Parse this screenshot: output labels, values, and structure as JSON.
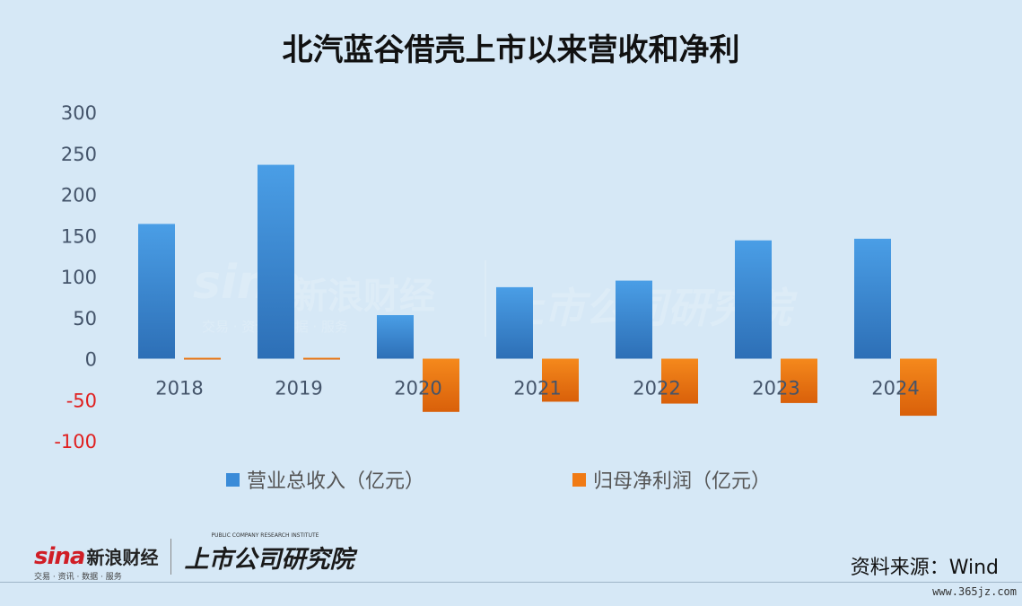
{
  "title": "北汽蓝谷借壳上市以来营收和净利",
  "colors": {
    "background": "#d6e8f6",
    "revenue": "#3a8bd8",
    "net_profit": "#f07a14",
    "negative_tick": "#e02020",
    "positive_tick": "#44546a"
  },
  "chart_data": {
    "type": "bar",
    "categories": [
      "2018",
      "2019",
      "2020",
      "2021",
      "2022",
      "2023",
      "2024"
    ],
    "series": [
      {
        "name": "营业总收入（亿元）",
        "values": [
          164,
          236,
          53,
          87,
          95,
          144,
          146
        ]
      },
      {
        "name": "归母净利润（亿元）",
        "values": [
          1.6,
          -1.2,
          -64.8,
          -52.4,
          -54.7,
          -54.0,
          -69.5
        ]
      }
    ],
    "ylim": [
      -100,
      300
    ],
    "yticks": [
      300,
      250,
      200,
      150,
      100,
      50,
      0,
      -50,
      -100
    ],
    "grid": false,
    "legend": "bottom"
  },
  "watermark": {
    "sina": "sina",
    "sina_cn": "新浪财经",
    "sina_sub": "交易 · 资讯 · 数据 · 服务",
    "institute_cn": "上市公司研究院"
  },
  "footer": {
    "logo_sina": "sina",
    "logo_sina_cn": "新浪财经",
    "logo_sina_sub": "交易 · 资讯 · 数据 · 服务",
    "logo_institute_en": "PUBLIC COMPANY RESEARCH INSTITUTE",
    "logo_institute_cn": "上市公司研究院",
    "source": "资料来源：Wind",
    "site": "www.365jz.com"
  }
}
